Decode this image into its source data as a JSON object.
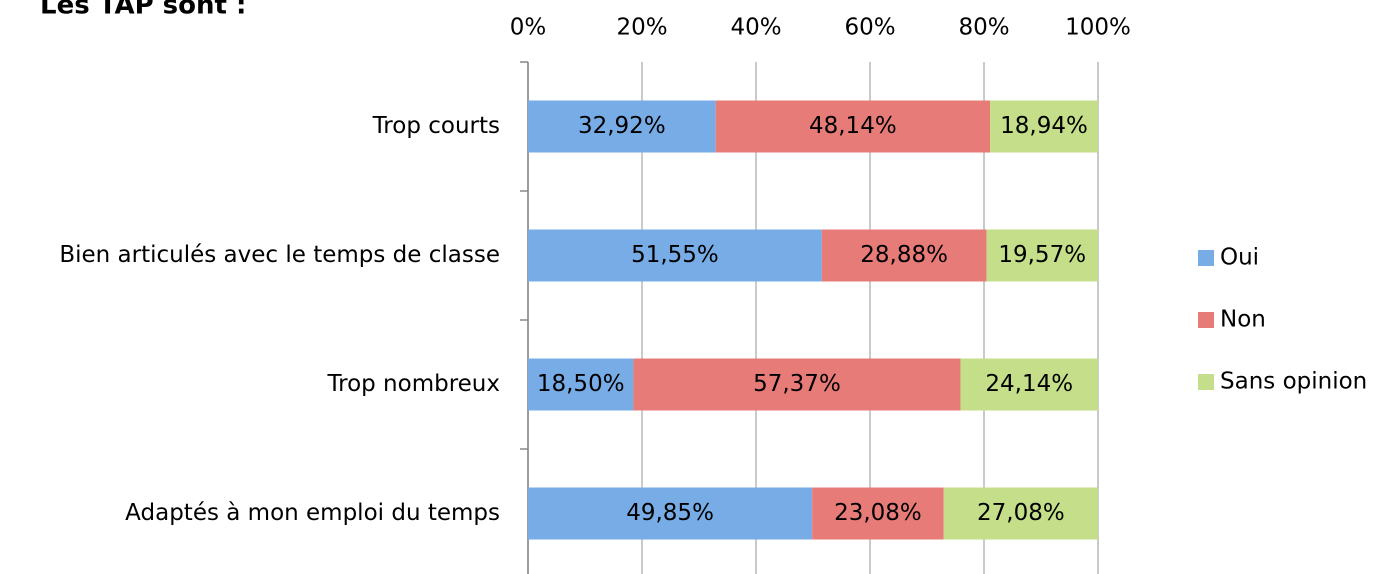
{
  "chart_data": {
    "type": "stacked-barh",
    "title": "Les TAP sont :",
    "categories": [
      "Trop courts",
      "Bien articulés avec le temps de classe",
      "Trop nombreux",
      "Adaptés à mon emploi du temps"
    ],
    "series": [
      {
        "name": "Oui",
        "color": "#78ace6",
        "values": [
          32.92,
          51.55,
          18.5,
          49.85
        ],
        "value_labels": [
          "32,92%",
          "51,55%",
          "18,50%",
          "49,85%"
        ]
      },
      {
        "name": "Non",
        "color": "#e67b78",
        "values": [
          48.14,
          28.88,
          57.37,
          23.08
        ],
        "value_labels": [
          "48,14%",
          "28,88%",
          "57,37%",
          "23,08%"
        ]
      },
      {
        "name": "Sans opinion",
        "color": "#c4de8a",
        "values": [
          18.94,
          19.57,
          24.14,
          27.08
        ],
        "value_labels": [
          "18,94%",
          "19,57%",
          "24,14%",
          "27,08%"
        ]
      }
    ],
    "xlim": [
      0,
      100
    ],
    "xticks": [
      {
        "value": 0,
        "label": "0%"
      },
      {
        "value": 20,
        "label": "20%"
      },
      {
        "value": 40,
        "label": "40%"
      },
      {
        "value": 60,
        "label": "60%"
      },
      {
        "value": 80,
        "label": "80%"
      },
      {
        "value": 100,
        "label": "100%"
      }
    ],
    "grid": true,
    "legend": "right"
  }
}
